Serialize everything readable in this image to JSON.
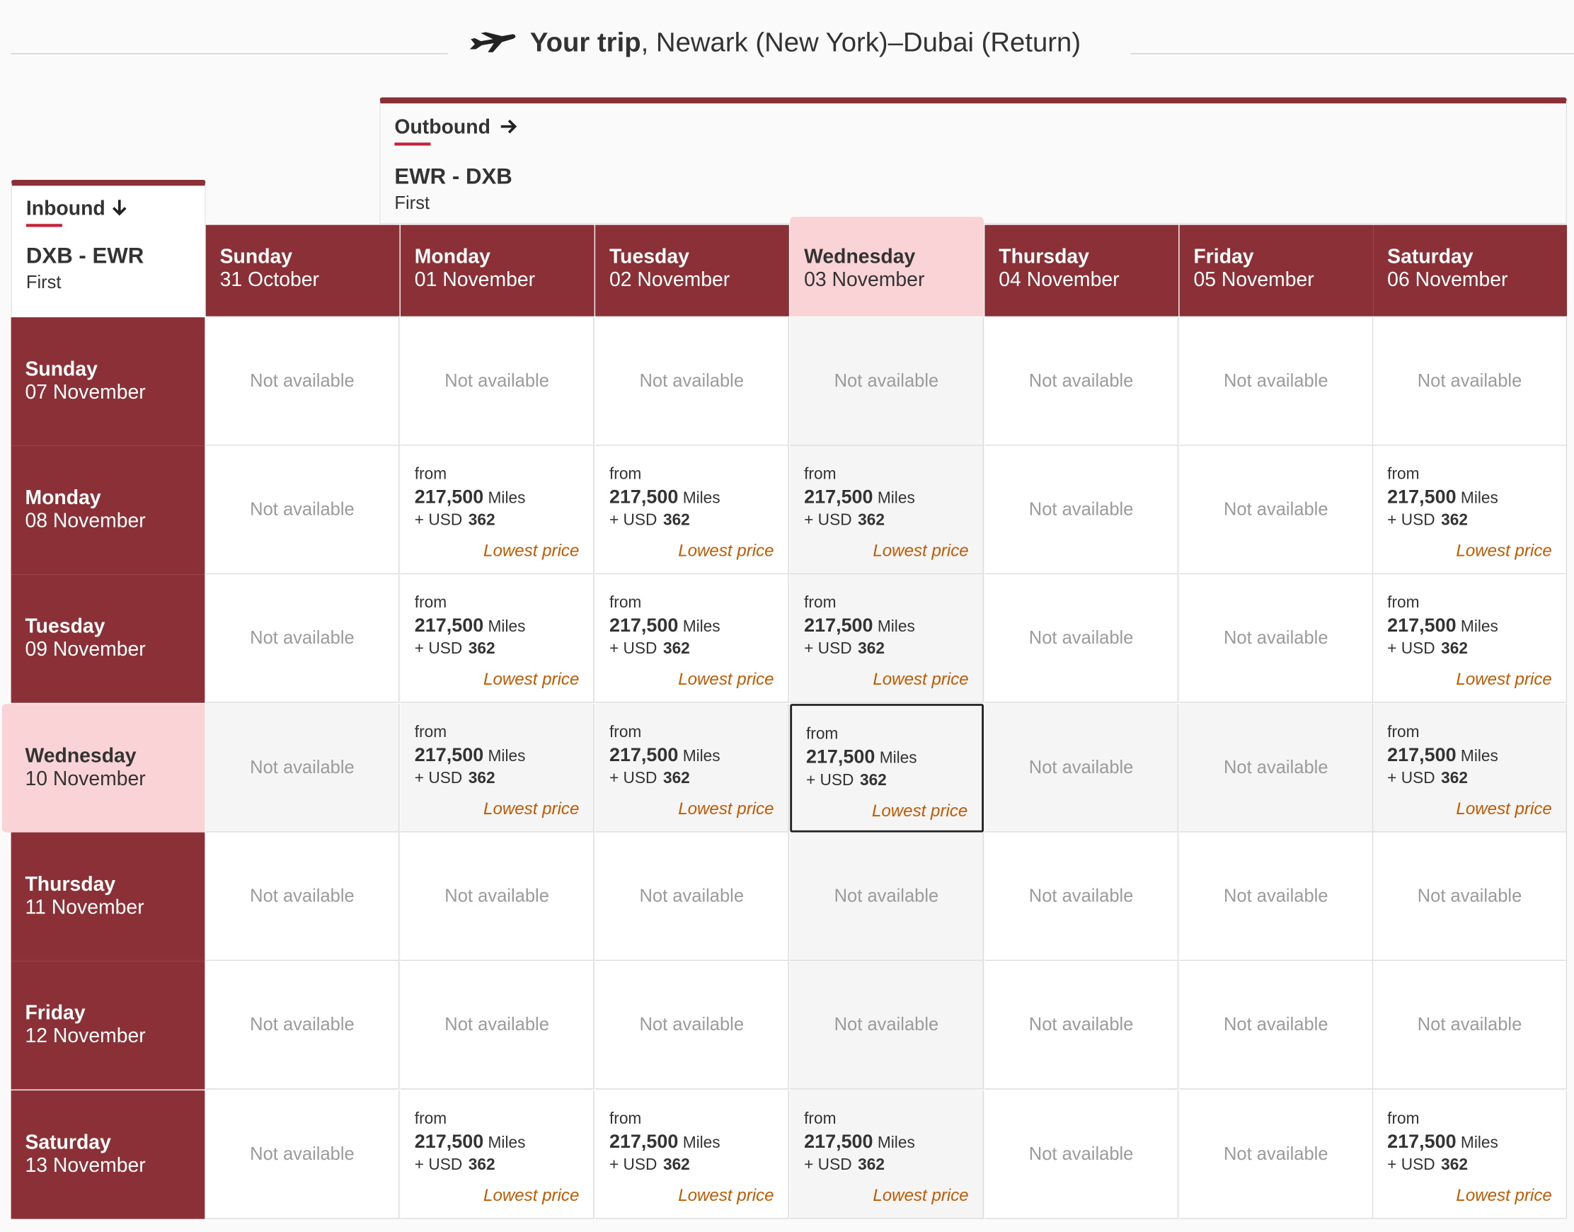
{
  "title": {
    "bold": "Your trip",
    "rest": ", Newark (New York)–Dubai (Return)"
  },
  "outbound": {
    "label": "Outbound",
    "arrow": "arrow-right-icon",
    "route": "EWR - DXB",
    "cabin": "First"
  },
  "inbound": {
    "label": "Inbound",
    "arrow": "arrow-down-icon",
    "route": "DXB - EWR",
    "cabin": "First"
  },
  "outbound_dates": [
    {
      "day": "Sunday",
      "date": "31 October"
    },
    {
      "day": "Monday",
      "date": "01 November"
    },
    {
      "day": "Tuesday",
      "date": "02 November"
    },
    {
      "day": "Wednesday",
      "date": "03 November",
      "selected": true
    },
    {
      "day": "Thursday",
      "date": "04 November"
    },
    {
      "day": "Friday",
      "date": "05 November"
    },
    {
      "day": "Saturday",
      "date": "06 November"
    }
  ],
  "inbound_dates": [
    {
      "day": "Sunday",
      "date": "07 November"
    },
    {
      "day": "Monday",
      "date": "08 November"
    },
    {
      "day": "Tuesday",
      "date": "09 November"
    },
    {
      "day": "Wednesday",
      "date": "10 November",
      "selected": true
    },
    {
      "day": "Thursday",
      "date": "11 November"
    },
    {
      "day": "Friday",
      "date": "12 November"
    },
    {
      "day": "Saturday",
      "date": "13 November"
    }
  ],
  "fare": {
    "from": "from",
    "miles": "217,500",
    "miles_unit": "Miles",
    "plus": "+",
    "currency": "USD",
    "tax": "362",
    "tag": "Lowest price"
  },
  "not_available": "Not available",
  "availability": [
    [
      0,
      0,
      0,
      0,
      0,
      0,
      0
    ],
    [
      0,
      1,
      1,
      1,
      0,
      0,
      1
    ],
    [
      0,
      1,
      1,
      1,
      0,
      0,
      1
    ],
    [
      0,
      1,
      1,
      1,
      0,
      0,
      1
    ],
    [
      0,
      0,
      0,
      0,
      0,
      0,
      0
    ],
    [
      0,
      0,
      0,
      0,
      0,
      0,
      0
    ],
    [
      0,
      1,
      1,
      1,
      0,
      0,
      1
    ]
  ],
  "selected_cell": {
    "row": 3,
    "col": 3
  },
  "colors": {
    "accent": "#8b3036",
    "selected_header": "#f9d3d5",
    "lowest_price": "#c25a00",
    "underline": "#c6233a"
  }
}
